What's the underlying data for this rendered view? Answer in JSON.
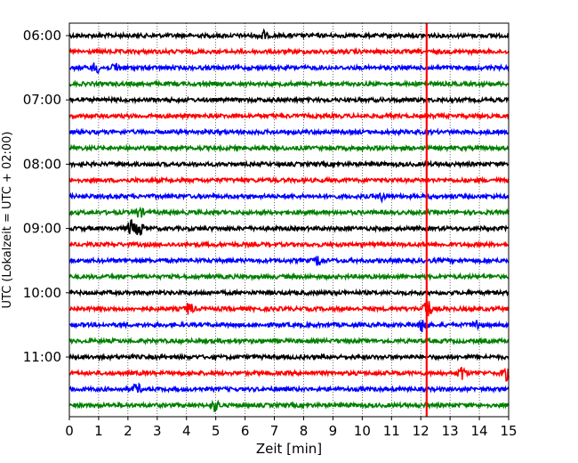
{
  "chart_data": {
    "type": "line",
    "title": "",
    "xlabel": "Zeit  [min]",
    "ylabel": "UTC (Lokalzeit = UTC + 02:00)",
    "xlim": [
      0,
      15
    ],
    "x_ticks": [
      "0",
      "1",
      "2",
      "3",
      "4",
      "5",
      "6",
      "7",
      "8",
      "9",
      "10",
      "11",
      "12",
      "13",
      "14",
      "15"
    ],
    "y_tick_labels": [
      "06:00",
      "07:00",
      "08:00",
      "09:00",
      "10:00",
      "11:00"
    ],
    "trace_times": [
      "06:00",
      "06:15",
      "06:30",
      "06:45",
      "07:00",
      "07:15",
      "07:30",
      "07:45",
      "08:00",
      "08:15",
      "08:30",
      "08:45",
      "09:00",
      "09:15",
      "09:30",
      "09:45",
      "10:00",
      "10:15",
      "10:30",
      "10:45",
      "11:00",
      "11:15",
      "11:30",
      "11:45"
    ],
    "trace_colors": [
      "#000000",
      "#ff0000",
      "#0000ff",
      "#008000"
    ],
    "grid": "vertical dotted",
    "marker_line": {
      "x": 12.2,
      "color": "#ff0000"
    },
    "events": [
      {
        "trace": 0,
        "x": 6.6,
        "amp": 5
      },
      {
        "trace": 2,
        "x": 0.9,
        "amp": 6
      },
      {
        "trace": 2,
        "x": 1.6,
        "amp": 5
      },
      {
        "trace": 10,
        "x": 10.7,
        "amp": 4
      },
      {
        "trace": 11,
        "x": 2.4,
        "amp": 5
      },
      {
        "trace": 12,
        "x": 2.1,
        "amp": 8
      },
      {
        "trace": 12,
        "x": 2.4,
        "amp": 8
      },
      {
        "trace": 14,
        "x": 8.5,
        "amp": 5
      },
      {
        "trace": 17,
        "x": 4.1,
        "amp": 7
      },
      {
        "trace": 17,
        "x": 12.2,
        "amp": 14
      },
      {
        "trace": 18,
        "x": 12.1,
        "amp": 10
      },
      {
        "trace": 18,
        "x": 13.9,
        "amp": 5
      },
      {
        "trace": 21,
        "x": 13.4,
        "amp": 7
      },
      {
        "trace": 21,
        "x": 14.9,
        "amp": 7
      },
      {
        "trace": 22,
        "x": 2.3,
        "amp": 6
      },
      {
        "trace": 23,
        "x": 5.0,
        "amp": 6
      }
    ]
  }
}
